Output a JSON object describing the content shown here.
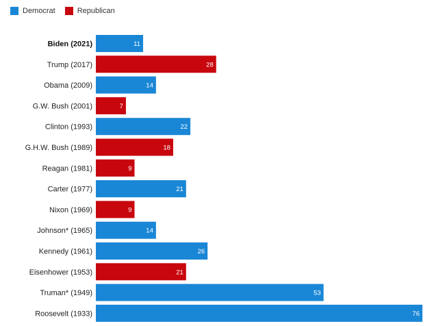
{
  "legend": {
    "democrat_label": "Democrat",
    "republican_label": "Republican"
  },
  "colors": {
    "Democrat": "#1a87d6",
    "Republican": "#c8060e"
  },
  "chart_data": {
    "type": "bar",
    "orientation": "horizontal",
    "title": "",
    "xlabel": "",
    "ylabel": "",
    "grid": false,
    "legend_position": "top-left",
    "xlim": [
      0,
      76
    ],
    "categories": [
      "Biden (2021)",
      "Trump (2017)",
      "Obama (2009)",
      "G.W. Bush (2001)",
      "Clinton (1993)",
      "G.H.W. Bush (1989)",
      "Reagan (1981)",
      "Carter (1977)",
      "Nixon (1969)",
      "Johnson* (1965)",
      "Kennedy (1961)",
      "Eisenhower (1953)",
      "Truman* (1949)",
      "Roosevelt (1933)"
    ],
    "values": [
      11,
      28,
      14,
      7,
      22,
      18,
      9,
      21,
      9,
      14,
      26,
      21,
      53,
      76
    ],
    "party": [
      "Democrat",
      "Republican",
      "Democrat",
      "Republican",
      "Democrat",
      "Republican",
      "Republican",
      "Democrat",
      "Republican",
      "Democrat",
      "Democrat",
      "Republican",
      "Democrat",
      "Democrat"
    ],
    "highlighted": [
      "Biden (2021)"
    ]
  }
}
